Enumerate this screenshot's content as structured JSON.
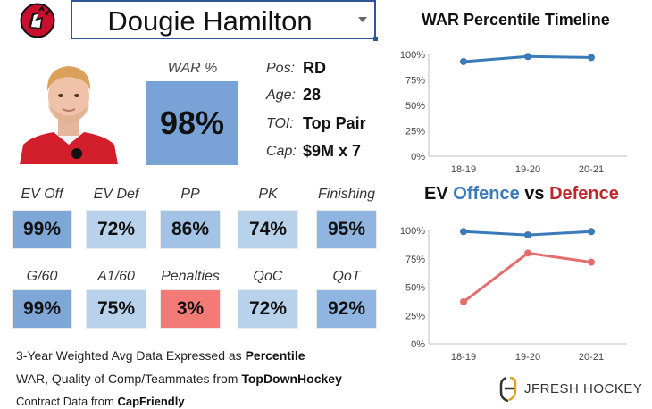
{
  "player": {
    "name": "Dougie Hamilton"
  },
  "war": {
    "label": "WAR %",
    "value": "98%"
  },
  "info": [
    {
      "label": "Pos:",
      "value": "RD"
    },
    {
      "label": "Age:",
      "value": "28"
    },
    {
      "label": "TOI:",
      "value": "Top Pair"
    },
    {
      "label": "Cap:",
      "value": "$9M x 7"
    }
  ],
  "stats_row1": [
    {
      "label": "EV Off",
      "value": "99%",
      "color": "#7ea7d8"
    },
    {
      "label": "EV Def",
      "value": "72%",
      "color": "#b8d2ec"
    },
    {
      "label": "PP",
      "value": "86%",
      "color": "#a3c3e6"
    },
    {
      "label": "PK",
      "value": "74%",
      "color": "#b8d2ec"
    },
    {
      "label": "Finishing",
      "value": "95%",
      "color": "#8fb5e0"
    }
  ],
  "stats_row2": [
    {
      "label": "G/60",
      "value": "99%",
      "color": "#7ea7d8"
    },
    {
      "label": "A1/60",
      "value": "75%",
      "color": "#b8d2ec"
    },
    {
      "label": "Penalties",
      "value": "3%",
      "color": "#f47a78"
    },
    {
      "label": "QoC",
      "value": "72%",
      "color": "#b8d2ec"
    },
    {
      "label": "QoT",
      "value": "92%",
      "color": "#8fb5e0"
    }
  ],
  "footnotes": {
    "line1": "3-Year Weighted Avg Data Expressed as",
    "line1_bold": "Percentile",
    "line2": "WAR, Quality of Comp/Teammates from",
    "line2_bold": "TopDownHockey",
    "line3": "Contract Data from",
    "line3_bold": "CapFriendly"
  },
  "brand": {
    "name": "JFRESH HOCKEY"
  },
  "chart_data": [
    {
      "type": "line",
      "title": "WAR Percentile Timeline",
      "categories": [
        "18-19",
        "19-20",
        "20-21"
      ],
      "series": [
        {
          "name": "WAR",
          "values": [
            93,
            98,
            97
          ],
          "color": "#3a7ab8"
        }
      ],
      "ylim": [
        0,
        100
      ],
      "yticks": [
        "0%",
        "25%",
        "50%",
        "75%",
        "100%"
      ],
      "grid": false
    },
    {
      "type": "line",
      "title": "EV Offence vs Defence",
      "title_parts": {
        "a": "EV ",
        "b": "Offence",
        "c": " vs ",
        "d": "Defence"
      },
      "categories": [
        "18-19",
        "19-20",
        "20-21"
      ],
      "series": [
        {
          "name": "Offence",
          "values": [
            99,
            96,
            99
          ],
          "color": "#3a7ab8"
        },
        {
          "name": "Defence",
          "values": [
            37,
            80,
            72
          ],
          "color": "#e56d6d"
        }
      ],
      "ylim": [
        0,
        100
      ],
      "yticks": [
        "0%",
        "25%",
        "50%",
        "75%",
        "100%"
      ],
      "grid": false
    }
  ]
}
